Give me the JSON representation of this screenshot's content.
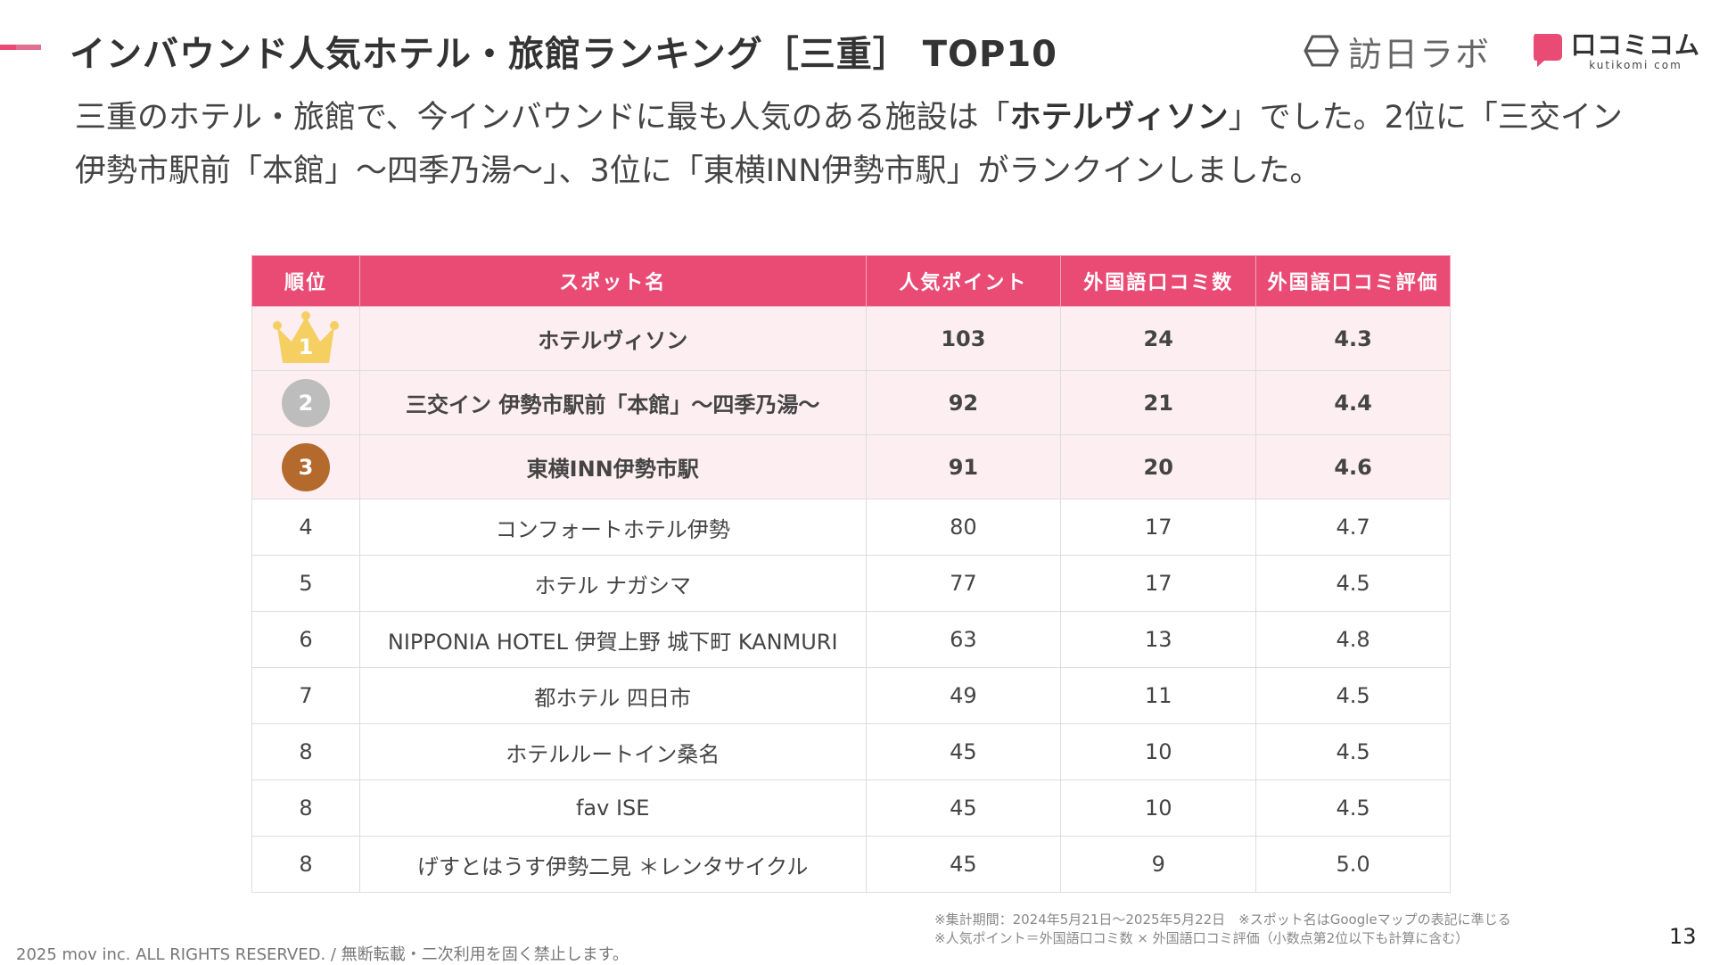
{
  "header": {
    "title": "インバウンド人気ホテル・旅館ランキング［三重］ TOP10",
    "brand1": "訪日ラボ",
    "brand2": "口コミコム",
    "brand2_sub": "kutikomi com"
  },
  "intro": {
    "part1": "三重のホテル・旅館で、今インバウンドに最も人気のある施設は「",
    "highlight": "ホテルヴィソン",
    "part2": "」でした。2位に「三交イン 伊勢市駅前「本館」〜四季乃湯〜」、3位に「東横INN伊勢市駅」がランクインしました。"
  },
  "table": {
    "headers": [
      "順位",
      "スポット名",
      "人気ポイント",
      "外国語口コミ数",
      "外国語口コミ評価"
    ],
    "rows": [
      {
        "rank": "1",
        "name": "ホテルヴィソン",
        "points": "103",
        "reviews": "24",
        "rating": "4.3"
      },
      {
        "rank": "2",
        "name": "三交イン 伊勢市駅前「本館」〜四季乃湯〜",
        "points": "92",
        "reviews": "21",
        "rating": "4.4"
      },
      {
        "rank": "3",
        "name": "東横INN伊勢市駅",
        "points": "91",
        "reviews": "20",
        "rating": "4.6"
      },
      {
        "rank": "4",
        "name": "コンフォートホテル伊勢",
        "points": "80",
        "reviews": "17",
        "rating": "4.7"
      },
      {
        "rank": "5",
        "name": "ホテル ナガシマ",
        "points": "77",
        "reviews": "17",
        "rating": "4.5"
      },
      {
        "rank": "6",
        "name": "NIPPONIA HOTEL 伊賀上野 城下町 KANMURI",
        "points": "63",
        "reviews": "13",
        "rating": "4.8"
      },
      {
        "rank": "7",
        "name": "都ホテル 四日市",
        "points": "49",
        "reviews": "11",
        "rating": "4.5"
      },
      {
        "rank": "8",
        "name": "ホテルルートイン桑名",
        "points": "45",
        "reviews": "10",
        "rating": "4.5"
      },
      {
        "rank": "8",
        "name": "fav ISE",
        "points": "45",
        "reviews": "10",
        "rating": "4.5"
      },
      {
        "rank": "8",
        "name": "げすとはうす伊勢二見 ＊レンタサイクル",
        "points": "45",
        "reviews": "9",
        "rating": "5.0"
      }
    ]
  },
  "notes": {
    "line1": "※集計期間：2024年5月21日〜2025年5月22日　※スポット名はGoogleマップの表記に準じる",
    "line2": "※人気ポイント＝外国語口コミ数 × 外国語口コミ評価（小数点第2位以下も計算に含む）"
  },
  "footer": {
    "copyright": "2025 mov inc. ALL RIGHTS RESERVED. / 無断転載・二次利用を固く禁止します。",
    "page_number": "13"
  },
  "colors": {
    "accent": "#e94b75",
    "top_row_bg": "#fdeef2",
    "gold": "#f6cf62",
    "silver": "#bdbdbd",
    "bronze": "#b36a2c"
  }
}
